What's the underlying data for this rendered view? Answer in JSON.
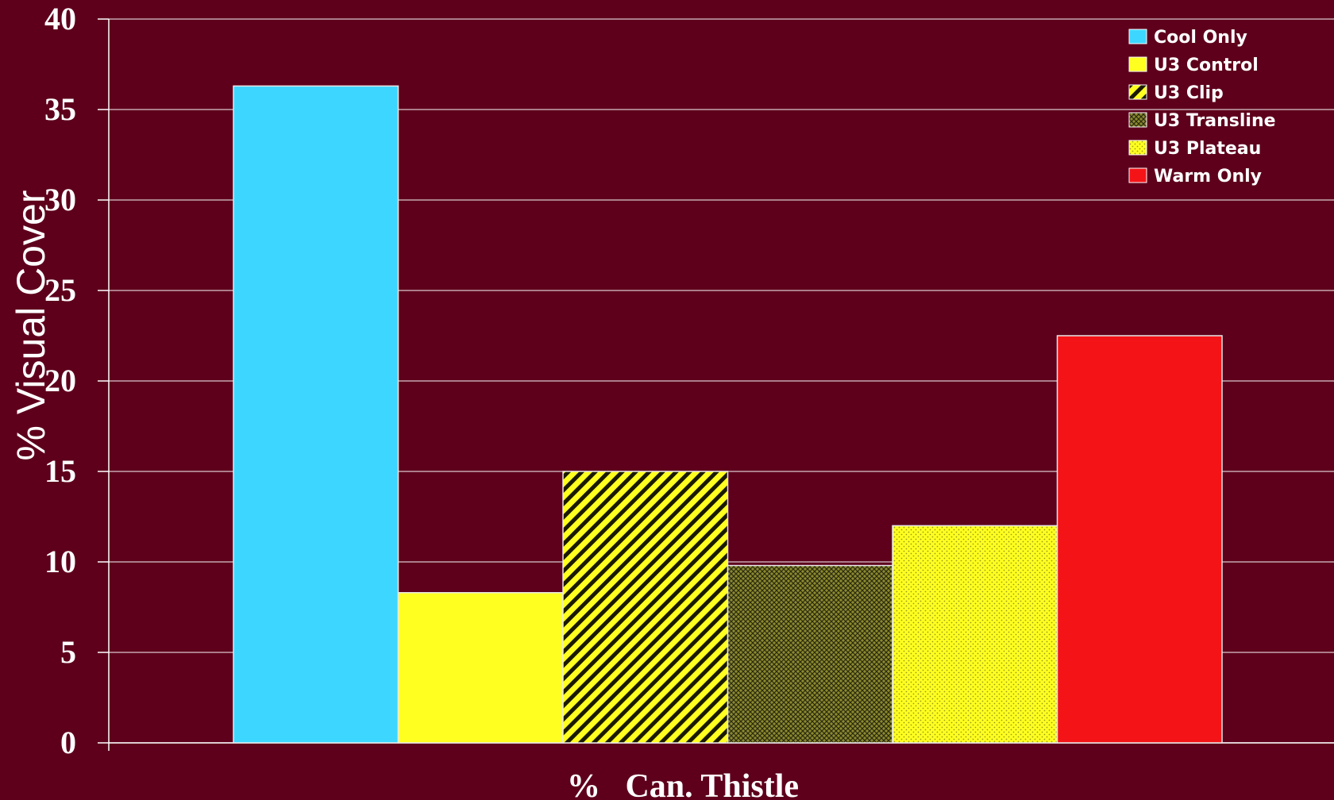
{
  "chart_data": {
    "type": "bar",
    "title": "",
    "xlabel": "%   Can. Thistle",
    "ylabel": "% Visual Cover",
    "ylim": [
      0,
      40
    ],
    "yticks": [
      "0",
      "5",
      "10",
      "15",
      "20",
      "25",
      "30",
      "35",
      "40"
    ],
    "grid": true,
    "legend_position": "top-right",
    "categories": [
      "%   Can. Thistle"
    ],
    "series": [
      {
        "name": "Cool Only",
        "values": [
          36.3
        ],
        "color": "#3dd6fe",
        "pattern": "solid"
      },
      {
        "name": "U3 Control",
        "values": [
          8.3
        ],
        "color": "#ffff20",
        "pattern": "solid"
      },
      {
        "name": "U3 Clip",
        "values": [
          15.0
        ],
        "color": "#ffff20",
        "pattern": "diagonal"
      },
      {
        "name": "U3 Transline",
        "values": [
          9.8
        ],
        "color": "#8c8a2e",
        "pattern": "crosshatch"
      },
      {
        "name": "U3 Plateau",
        "values": [
          12.0
        ],
        "color": "#ffff20",
        "pattern": "dots"
      },
      {
        "name": "Warm Only",
        "values": [
          22.5
        ],
        "color": "#f41418",
        "pattern": "solid"
      }
    ]
  }
}
